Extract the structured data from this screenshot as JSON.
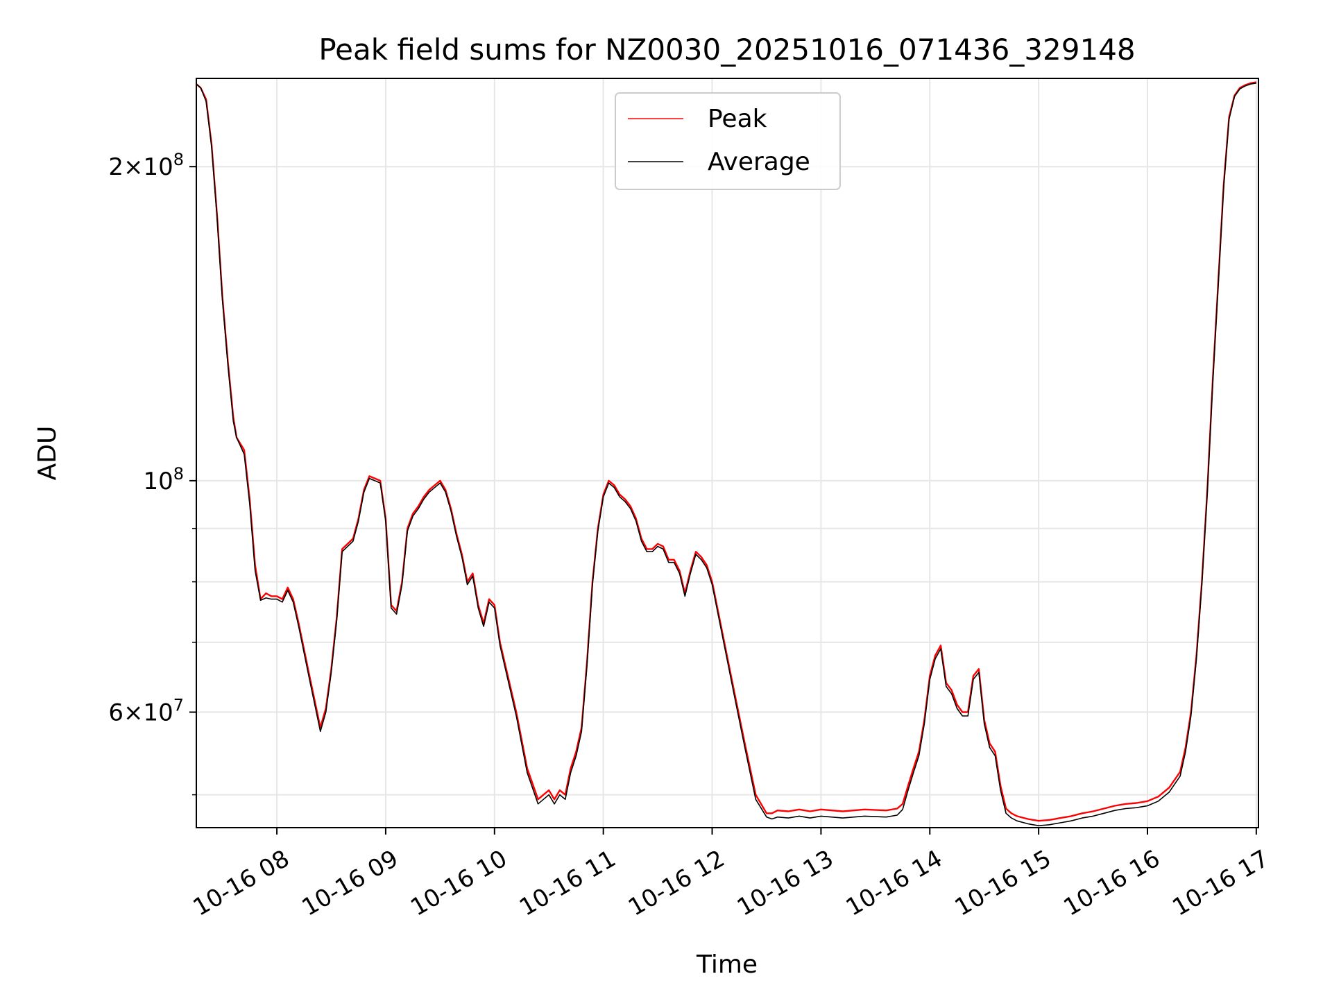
{
  "chart_data": {
    "type": "line",
    "title": "Peak field sums for NZ0030_20251016_071436_329148",
    "xlabel": "Time",
    "ylabel": "ADU",
    "yscale": "log",
    "grid": true,
    "legend_position": "upper-center",
    "ylim": [
      46500000,
      243000000
    ],
    "xlim_hours": [
      7.26,
      17.02
    ],
    "x_tick_labels": [
      "10-16 08",
      "10-16 09",
      "10-16 10",
      "10-16 11",
      "10-16 12",
      "10-16 13",
      "10-16 14",
      "10-16 15",
      "10-16 16",
      "10-16 17"
    ],
    "x_tick_hours": [
      8,
      9,
      10,
      11,
      12,
      13,
      14,
      15,
      16,
      17
    ],
    "y_major_ticks": [
      {
        "value": 60000000,
        "mant": "6",
        "exp": "7"
      },
      {
        "value": 100000000,
        "mant": "",
        "exp": "8"
      },
      {
        "value": 200000000,
        "mant": "2",
        "exp": "8"
      }
    ],
    "y_minor_tick_values": [
      50000000,
      70000000,
      80000000,
      90000000
    ],
    "x_hours": [
      7.26,
      7.3,
      7.35,
      7.4,
      7.45,
      7.5,
      7.55,
      7.6,
      7.63,
      7.7,
      7.75,
      7.8,
      7.85,
      7.9,
      7.95,
      8.0,
      8.05,
      8.1,
      8.15,
      8.2,
      8.3,
      8.4,
      8.45,
      8.5,
      8.55,
      8.6,
      8.7,
      8.75,
      8.8,
      8.85,
      8.9,
      8.95,
      9.0,
      9.05,
      9.1,
      9.15,
      9.2,
      9.25,
      9.3,
      9.35,
      9.4,
      9.45,
      9.5,
      9.55,
      9.6,
      9.65,
      9.7,
      9.75,
      9.8,
      9.85,
      9.9,
      9.95,
      10.0,
      10.05,
      10.1,
      10.2,
      10.3,
      10.4,
      10.45,
      10.5,
      10.55,
      10.6,
      10.65,
      10.7,
      10.75,
      10.8,
      10.85,
      10.9,
      10.95,
      11.0,
      11.05,
      11.1,
      11.15,
      11.2,
      11.25,
      11.3,
      11.35,
      11.4,
      11.45,
      11.5,
      11.55,
      11.6,
      11.65,
      11.7,
      11.75,
      11.8,
      11.85,
      11.9,
      11.95,
      12.0,
      12.1,
      12.2,
      12.3,
      12.4,
      12.5,
      12.55,
      12.6,
      12.7,
      12.8,
      12.9,
      13.0,
      13.2,
      13.4,
      13.6,
      13.7,
      13.75,
      13.8,
      13.85,
      13.9,
      13.95,
      14.0,
      14.05,
      14.1,
      14.15,
      14.2,
      14.25,
      14.3,
      14.35,
      14.4,
      14.45,
      14.5,
      14.55,
      14.6,
      14.65,
      14.7,
      14.75,
      14.8,
      14.9,
      15.0,
      15.1,
      15.2,
      15.3,
      15.4,
      15.5,
      15.6,
      15.7,
      15.8,
      15.9,
      16.0,
      16.1,
      16.2,
      16.3,
      16.35,
      16.4,
      16.45,
      16.5,
      16.55,
      16.6,
      16.65,
      16.7,
      16.75,
      16.8,
      16.85,
      16.9,
      16.95,
      17.0
    ],
    "series": [
      {
        "name": "Peak",
        "color": "#ff0000",
        "values": [
          240000000,
          238000000,
          232000000,
          210000000,
          180000000,
          150000000,
          130000000,
          115000000,
          110000000,
          107000000,
          96000000,
          83000000,
          77000000,
          78000000,
          77500000,
          77500000,
          77000000,
          79000000,
          77000000,
          73000000,
          65000000,
          58000000,
          60500000,
          66000000,
          74000000,
          86000000,
          88000000,
          92000000,
          98000000,
          101000000,
          100500000,
          100000000,
          92000000,
          76000000,
          75000000,
          80000000,
          90000000,
          93000000,
          94500000,
          96500000,
          98000000,
          99000000,
          100000000,
          98000000,
          94000000,
          89000000,
          85000000,
          80000000,
          81500000,
          76000000,
          73000000,
          77000000,
          76000000,
          70000000,
          66500000,
          60000000,
          53000000,
          49500000,
          50000000,
          50500000,
          49500000,
          50500000,
          50000000,
          53000000,
          55000000,
          58000000,
          67000000,
          80000000,
          90000000,
          97000000,
          100000000,
          99000000,
          97000000,
          96000000,
          94500000,
          92000000,
          88000000,
          86000000,
          86000000,
          87000000,
          86500000,
          84000000,
          84000000,
          82000000,
          78000000,
          82000000,
          85500000,
          84500000,
          83000000,
          80000000,
          71000000,
          63000000,
          56000000,
          50000000,
          48000000,
          48000000,
          48300000,
          48200000,
          48400000,
          48200000,
          48400000,
          48200000,
          48400000,
          48300000,
          48500000,
          49000000,
          51000000,
          53000000,
          55000000,
          59000000,
          65000000,
          68000000,
          69500000,
          64000000,
          63000000,
          61000000,
          60000000,
          60000000,
          65000000,
          66000000,
          59000000,
          56000000,
          55000000,
          51000000,
          48500000,
          48000000,
          47700000,
          47400000,
          47200000,
          47300000,
          47500000,
          47700000,
          48000000,
          48200000,
          48500000,
          48800000,
          49000000,
          49100000,
          49300000,
          49800000,
          50800000,
          52600000,
          55500000,
          60000000,
          68000000,
          80000000,
          98000000,
          125000000,
          155000000,
          192000000,
          223000000,
          234000000,
          238000000,
          239500000,
          240500000,
          241000000
        ]
      },
      {
        "name": "Average",
        "color": "#000000",
        "values": [
          240000000,
          238000000,
          231000000,
          209000000,
          179000000,
          149000000,
          129000000,
          114000000,
          110000000,
          106000000,
          95000000,
          82000000,
          76800000,
          77200000,
          77000000,
          77000000,
          76500000,
          78500000,
          76500000,
          72500000,
          64500000,
          57500000,
          60000000,
          65500000,
          73500000,
          85500000,
          87500000,
          91500000,
          97500000,
          100500000,
          100000000,
          99500000,
          91500000,
          75500000,
          74500000,
          79500000,
          89500000,
          92500000,
          94000000,
          96000000,
          97500000,
          98500000,
          99500000,
          97500000,
          93500000,
          88500000,
          84500000,
          79500000,
          81000000,
          75500000,
          72500000,
          76500000,
          75500000,
          69500000,
          66000000,
          59500000,
          52500000,
          49000000,
          49500000,
          50000000,
          49000000,
          50000000,
          49500000,
          52500000,
          54500000,
          57500000,
          66500000,
          79500000,
          89500000,
          96500000,
          99500000,
          98500000,
          96500000,
          95500000,
          94000000,
          91500000,
          87500000,
          85500000,
          85500000,
          86500000,
          86000000,
          83500000,
          83500000,
          81500000,
          77500000,
          81500000,
          85000000,
          84000000,
          82500000,
          79500000,
          70500000,
          62500000,
          55500000,
          49500000,
          47600000,
          47400000,
          47600000,
          47500000,
          47700000,
          47500000,
          47700000,
          47500000,
          47700000,
          47600000,
          47800000,
          48400000,
          50500000,
          52500000,
          54500000,
          58500000,
          64500000,
          67500000,
          69000000,
          63500000,
          62500000,
          60500000,
          59500000,
          59500000,
          64500000,
          65500000,
          58500000,
          55500000,
          54500000,
          50500000,
          48000000,
          47500000,
          47200000,
          46900000,
          46700000,
          46800000,
          47000000,
          47200000,
          47500000,
          47700000,
          48000000,
          48300000,
          48500000,
          48600000,
          48800000,
          49300000,
          50300000,
          52100000,
          55000000,
          59500000,
          67500000,
          79500000,
          97500000,
          124000000,
          154000000,
          191000000,
          222000000,
          233500000,
          237500000,
          239000000,
          240000000,
          240500000
        ]
      }
    ]
  },
  "legend": {
    "entries": [
      {
        "label": "Peak",
        "color": "#ff0000"
      },
      {
        "label": "Average",
        "color": "#000000"
      }
    ]
  },
  "colors": {
    "grid": "#e6e6e6",
    "axis": "#000000",
    "background": "#ffffff"
  }
}
